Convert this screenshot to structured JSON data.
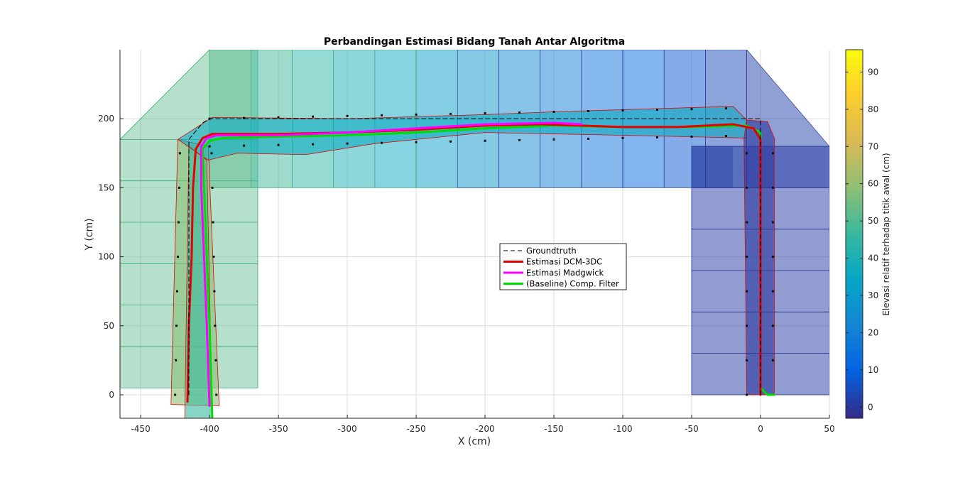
{
  "chart_data": {
    "type": "line",
    "title": "Perbandingan Estimasi Bidang Tanah Antar Algoritma",
    "xlabel": "X (cm)",
    "ylabel": "Y (cm)",
    "xlim": [
      -465,
      50
    ],
    "ylim": [
      -17,
      250
    ],
    "xticks": [
      -450,
      -400,
      -350,
      -300,
      -250,
      -200,
      -150,
      -100,
      -50,
      0,
      50
    ],
    "yticks": [
      0,
      50,
      100,
      150,
      200
    ],
    "grid": true,
    "legend_position": "center",
    "colorbar": {
      "label": "Elevasi relatif terhadap titik awal (cm)",
      "range": [
        -3,
        96
      ],
      "ticks": [
        0,
        10,
        20,
        30,
        40,
        50,
        60,
        70,
        80,
        90
      ],
      "colormap": "parula"
    },
    "series": [
      {
        "name": "Groundtruth",
        "color": "#000000",
        "style": "dashed",
        "x": [
          -415,
          -415,
          -405,
          -400,
          0,
          0
        ],
        "y": [
          0,
          185,
          197,
          200,
          200,
          0
        ]
      },
      {
        "name": "Estimasi DCM-3DC",
        "color": "#e60000",
        "style": "solid",
        "x": [
          -416,
          -415,
          -413,
          -412,
          -410,
          -405,
          -398,
          -380,
          -350,
          -300,
          -250,
          -200,
          -160,
          -130,
          -100,
          -60,
          -20,
          -5,
          0,
          0,
          0
        ],
        "y": [
          -5,
          50,
          100,
          150,
          178,
          186,
          189,
          189,
          189,
          190,
          192,
          195,
          196,
          195,
          194,
          194,
          196,
          193,
          185,
          100,
          0
        ]
      },
      {
        "name": "Estimasi Madgwick",
        "color": "#ff00ff",
        "style": "solid",
        "x": [
          -400,
          -402,
          -404,
          -406,
          -406,
          -402,
          -395,
          -380,
          -350,
          -300,
          -250,
          -200,
          -150,
          -130
        ],
        "y": [
          -8,
          50,
          100,
          150,
          180,
          186,
          188,
          188,
          188,
          190,
          193,
          196,
          197,
          196
        ]
      },
      {
        "name": "(Baseline) Comp. Filter",
        "color": "#00dd00",
        "style": "solid",
        "x": [
          -398,
          -400,
          -402,
          -404,
          -405,
          -400,
          -390,
          -350,
          -300,
          -250,
          -200,
          -150,
          -100,
          -50,
          -10,
          0,
          0,
          0,
          5,
          10
        ],
        "y": [
          -17,
          50,
          100,
          150,
          178,
          184,
          186,
          187,
          188,
          190,
          193,
          195,
          194,
          194,
          195,
          190,
          100,
          5,
          0,
          0
        ]
      }
    ],
    "colors": {
      "axis": "#262626",
      "grid": "#dcdcdc",
      "patch_edge_green": "#3aa56e",
      "patch_edge_blue": "#1f2b8a"
    }
  }
}
